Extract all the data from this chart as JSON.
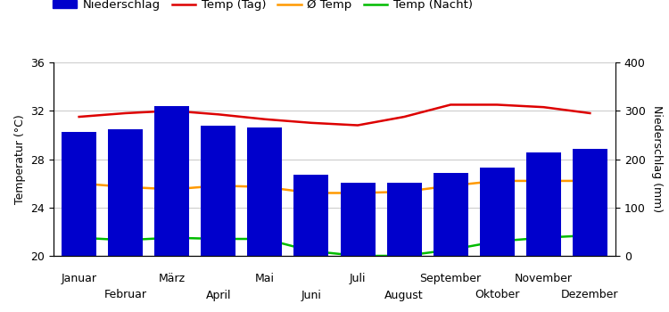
{
  "months": [
    "Januar",
    "Februar",
    "März",
    "April",
    "Mai",
    "Juni",
    "Juli",
    "August",
    "September",
    "Oktober",
    "November",
    "Dezember"
  ],
  "precipitation_mm": [
    257,
    262,
    310,
    270,
    265,
    168,
    152,
    152,
    172,
    183,
    213,
    222
  ],
  "temp_day": [
    31.5,
    31.8,
    32.0,
    31.7,
    31.3,
    31.0,
    30.8,
    31.5,
    32.5,
    32.5,
    32.3,
    31.8
  ],
  "temp_avg": [
    26.0,
    25.7,
    25.5,
    25.8,
    25.7,
    25.2,
    25.2,
    25.3,
    25.8,
    26.2,
    26.2,
    26.2
  ],
  "temp_night": [
    21.5,
    21.3,
    21.5,
    21.4,
    21.4,
    20.4,
    20.0,
    20.0,
    20.5,
    21.2,
    21.5,
    21.7
  ],
  "bar_color": "#0000cc",
  "temp_day_color": "#dd0000",
  "temp_avg_color": "#ff9900",
  "temp_night_color": "#00bb00",
  "ylabel_left": "Temperatur (°C)",
  "ylabel_right": "Niederschlag (mm)",
  "ylim_left": [
    20,
    36
  ],
  "ylim_right": [
    0,
    400
  ],
  "yticks_left": [
    20,
    24,
    28,
    32,
    36
  ],
  "yticks_right": [
    0,
    100,
    200,
    300,
    400
  ],
  "legend_labels": [
    "Niederschlag",
    "Temp (Tag)",
    "Ø Temp",
    "Temp (Nacht)"
  ],
  "background_color": "#ffffff",
  "grid_color": "#cccccc",
  "axis_fontsize": 9,
  "tick_fontsize": 9
}
